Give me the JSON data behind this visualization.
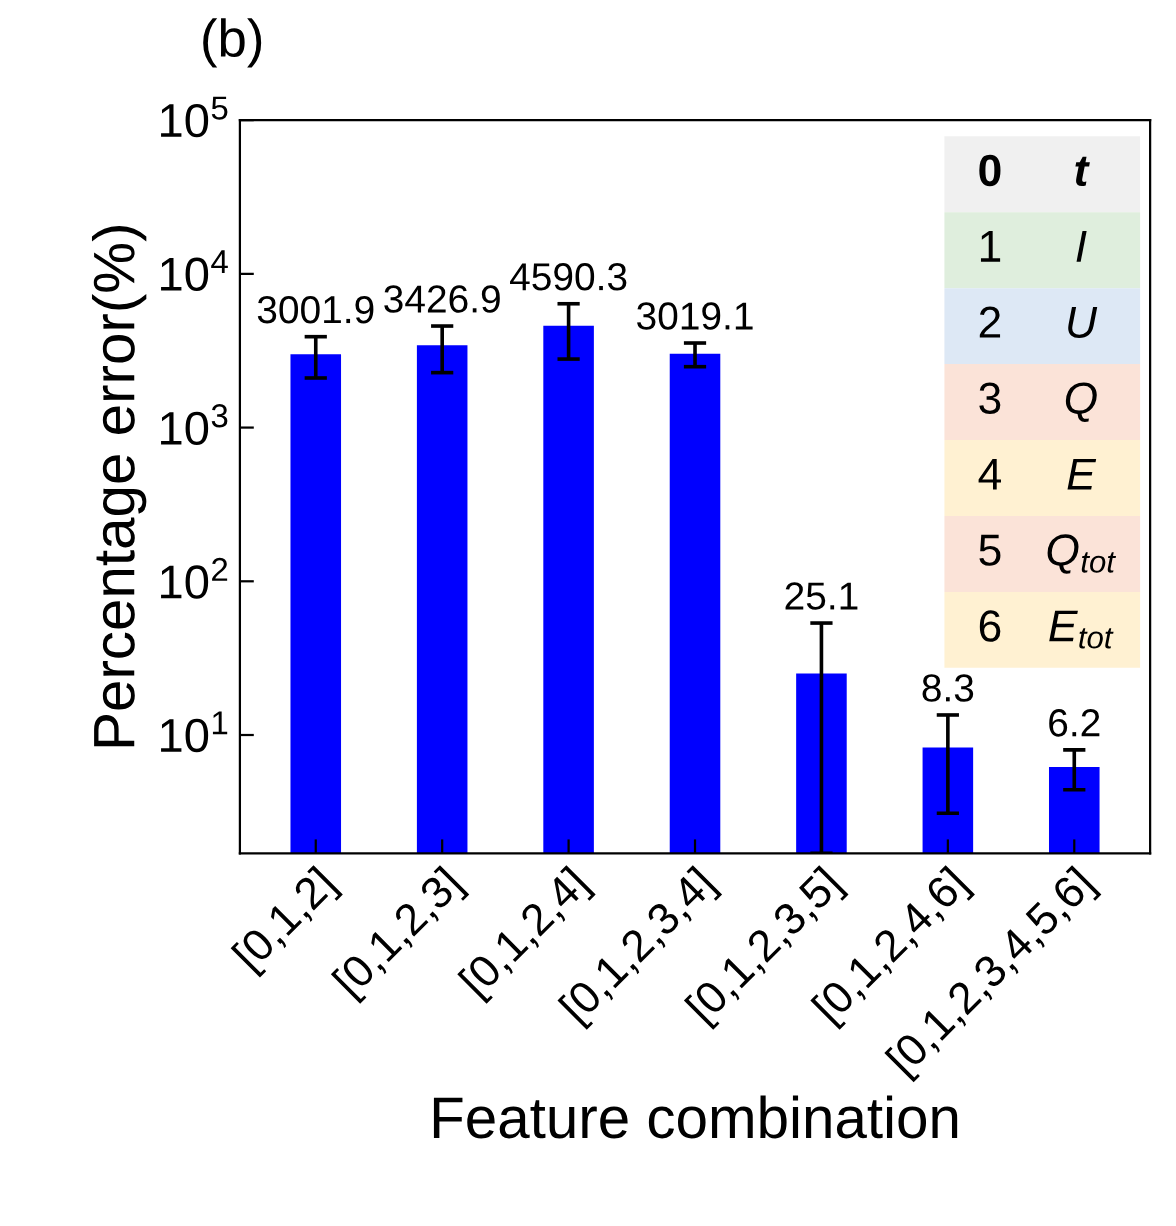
{
  "chart_data": {
    "type": "bar",
    "ylabel": "Percentage error(%)",
    "xlabel": "Feature combination",
    "categories": [
      "[0,1,2]",
      "[0,1,2,3]",
      "[0,1,2,4]",
      "[0,1,2,3,4]",
      "[0,1,2,3,5]",
      "[0,1,2,4,6]",
      "[0,1,2,3,4,5,6]"
    ],
    "values": [
      3001.9,
      3426.9,
      4590.3,
      3019.1,
      25.1,
      8.3,
      6.2
    ],
    "errors": [
      900,
      1150,
      1800,
      530,
      [
        1.7,
        53.5
      ],
      5.2,
      1.8
    ],
    "color": "#0000ff",
    "data_labels": true,
    "log": true,
    "grid": false,
    "legend": false,
    "ylim": [
      1.7,
      100000
    ],
    "yticks": [
      {
        "value": 10,
        "label": "10$^{1}$"
      },
      {
        "value": 100,
        "label": "10$^{2}$"
      },
      {
        "value": 1000,
        "label": "10$^{3}$"
      },
      {
        "value": 10000,
        "label": "10$^{4}$"
      },
      {
        "value": 100000,
        "label": "10$^{5}$"
      }
    ],
    "annotations": [
      "(b)",
      "0",
      "t",
      "1",
      "I",
      "2",
      "U",
      "3",
      "Q",
      "4",
      "E",
      "5",
      "Q$_{tot}$",
      "6",
      "E$_{tot}$"
    ]
  }
}
